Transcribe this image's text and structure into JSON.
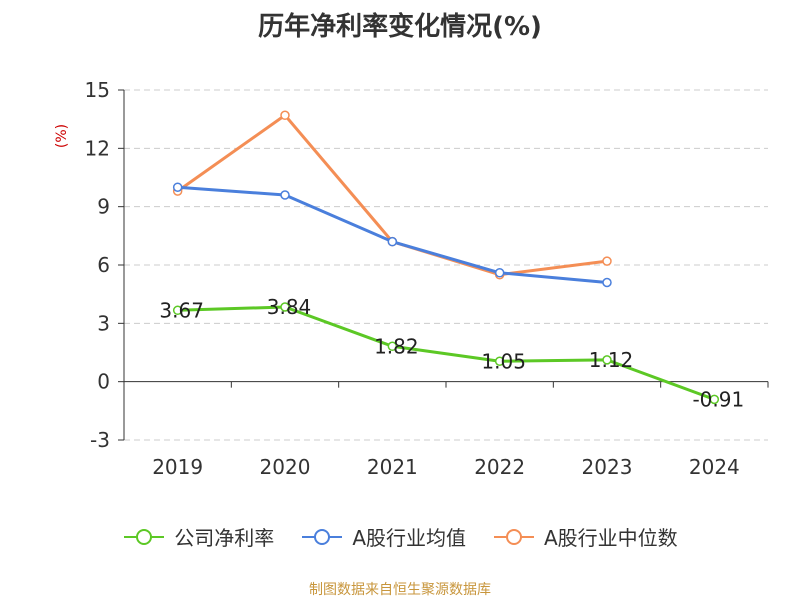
{
  "title": "历年净利率变化情况(%)",
  "unit_label": "(%)",
  "source": "制图数据来自恒生聚源数据库",
  "colors": {
    "grid": "#cccccc",
    "axis": "#333333"
  },
  "chart_data": {
    "type": "line",
    "title": "历年净利率变化情况(%)",
    "ylabel": "(%)",
    "categories": [
      "2019",
      "2020",
      "2021",
      "2022",
      "2023",
      "2024"
    ],
    "ylim": [
      -3,
      15
    ],
    "yticks": [
      -3,
      0,
      3,
      6,
      9,
      12,
      15
    ],
    "ytick_labels": [
      "-3",
      "0",
      "3",
      "6",
      "9",
      "12",
      "15"
    ],
    "grid": true,
    "legend_position": "bottom",
    "series": [
      {
        "name": "公司净利率",
        "color": "#5cc825",
        "values": [
          3.67,
          3.84,
          1.82,
          1.05,
          1.12,
          -0.91
        ],
        "labels": [
          "3.67",
          "3.84",
          "1.82",
          "1.05",
          "1.12",
          "-0.91"
        ]
      },
      {
        "name": "A股行业均值",
        "color": "#4a7fdc",
        "values": [
          10.0,
          9.6,
          7.2,
          5.6,
          5.1,
          null
        ]
      },
      {
        "name": "A股行业中位数",
        "color": "#f48e55",
        "values": [
          9.8,
          13.7,
          7.2,
          5.5,
          6.2,
          null
        ]
      }
    ]
  }
}
